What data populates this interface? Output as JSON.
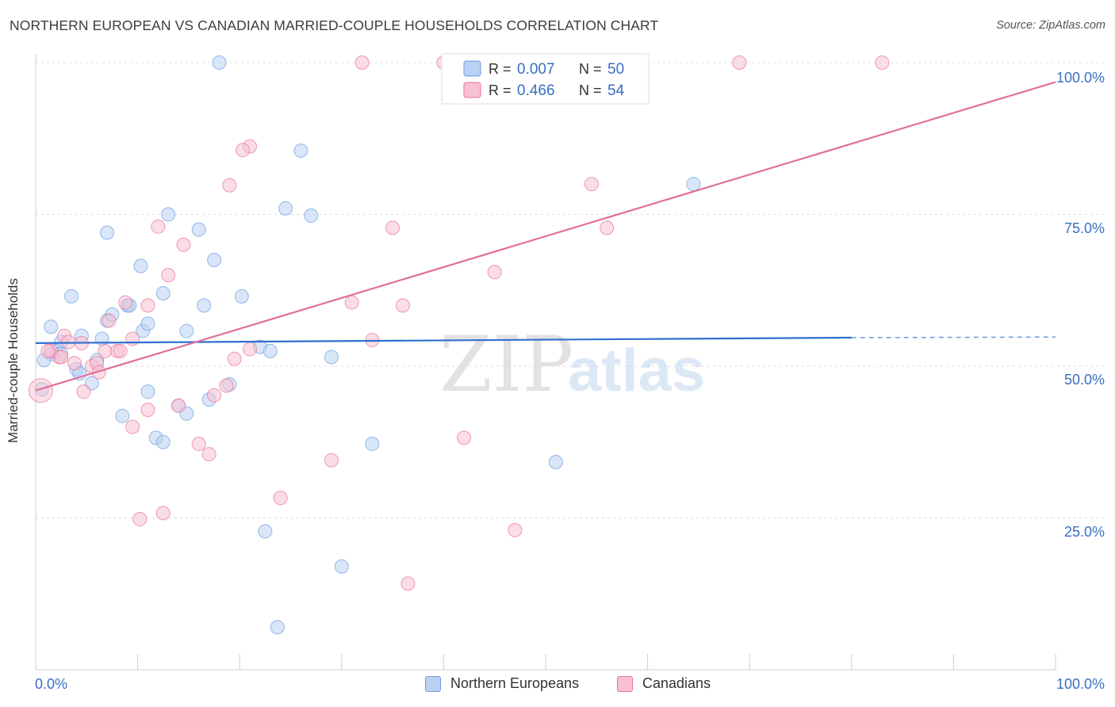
{
  "chart_data": {
    "type": "scatter",
    "title": "NORTHERN EUROPEAN VS CANADIAN MARRIED-COUPLE HOUSEHOLDS CORRELATION CHART",
    "source": "Source: ZipAtlas.com",
    "xlabel": "",
    "ylabel": "Married-couple Households",
    "xlim": [
      0,
      100
    ],
    "ylim": [
      0,
      100
    ],
    "x_tick_labels": [
      "0.0%",
      "100.0%"
    ],
    "y_tick_labels": [
      "25.0%",
      "50.0%",
      "75.0%",
      "100.0%"
    ],
    "y_ticks": [
      25,
      50,
      75,
      100
    ],
    "watermark": {
      "zip": "ZIP",
      "atlas": "atlas"
    },
    "legend_stats": [
      {
        "r_label": "R =",
        "r_value": "0.007",
        "n_label": "N =",
        "n_value": "50"
      },
      {
        "r_label": "R =",
        "r_value": "0.466",
        "n_label": "N =",
        "n_value": "54"
      }
    ],
    "series": [
      {
        "name": "Northern Europeans",
        "color": "#6a9fe0",
        "fill": "#b9d1f2",
        "trend": {
          "x0": 0,
          "y0": 53.8,
          "x1": 80,
          "y1": 54.7,
          "dash_to": 100,
          "dash_y": 54.8
        },
        "points": [
          [
            18,
            100
          ],
          [
            1.5,
            56.5
          ],
          [
            3.5,
            61.5
          ],
          [
            7,
            57.5
          ],
          [
            7.5,
            58.5
          ],
          [
            9,
            60
          ],
          [
            9.2,
            60
          ],
          [
            6.5,
            54.5
          ],
          [
            4.5,
            55
          ],
          [
            2.5,
            54
          ],
          [
            2,
            52.5
          ],
          [
            1.5,
            52
          ],
          [
            0.8,
            51
          ],
          [
            7,
            72
          ],
          [
            10.3,
            66.5
          ],
          [
            13,
            75
          ],
          [
            16,
            72.5
          ],
          [
            17.5,
            67.5
          ],
          [
            12.5,
            62
          ],
          [
            16.5,
            60
          ],
          [
            20.2,
            61.5
          ],
          [
            26,
            85.5
          ],
          [
            24.5,
            76
          ],
          [
            27,
            74.8
          ],
          [
            64.5,
            80
          ],
          [
            6,
            51
          ],
          [
            4,
            49.5
          ],
          [
            4.3,
            48.8
          ],
          [
            5.5,
            47.2
          ],
          [
            10.5,
            55.8
          ],
          [
            11,
            57
          ],
          [
            14.8,
            55.8
          ],
          [
            11,
            45.8
          ],
          [
            8.5,
            41.8
          ],
          [
            14,
            43.5
          ],
          [
            14.8,
            42.2
          ],
          [
            17,
            44.5
          ],
          [
            19,
            47
          ],
          [
            22,
            53.2
          ],
          [
            23,
            52.5
          ],
          [
            29,
            51.5
          ],
          [
            11.8,
            38.2
          ],
          [
            12.5,
            37.5
          ],
          [
            33,
            37.2
          ],
          [
            51,
            34.2
          ],
          [
            22.5,
            22.8
          ],
          [
            30,
            17
          ],
          [
            23.7,
            7
          ],
          [
            0.6,
            46.2
          ],
          [
            2.5,
            52
          ]
        ]
      },
      {
        "name": "Canadians",
        "color": "#e8709c",
        "fill": "#f7c1d2",
        "trend": {
          "x0": 0,
          "y0": 46,
          "x1": 100,
          "y1": 96.8
        },
        "points": [
          [
            32,
            100
          ],
          [
            40,
            100
          ],
          [
            69,
            100
          ],
          [
            83,
            100
          ],
          [
            56.5,
            95
          ],
          [
            21,
            86.2
          ],
          [
            20.3,
            85.6
          ],
          [
            19,
            79.8
          ],
          [
            54.5,
            80
          ],
          [
            12,
            73
          ],
          [
            14.5,
            70
          ],
          [
            35,
            72.8
          ],
          [
            56,
            72.8
          ],
          [
            13,
            65
          ],
          [
            45,
            65.5
          ],
          [
            31,
            60.5
          ],
          [
            36,
            60
          ],
          [
            8.8,
            60.5
          ],
          [
            11,
            60
          ],
          [
            7.2,
            57.5
          ],
          [
            2.8,
            55
          ],
          [
            3.2,
            54
          ],
          [
            4.5,
            53.8
          ],
          [
            6.8,
            52.5
          ],
          [
            8,
            52.5
          ],
          [
            8.3,
            52.5
          ],
          [
            9.5,
            54.5
          ],
          [
            33,
            54.3
          ],
          [
            21,
            52.8
          ],
          [
            19.5,
            51.2
          ],
          [
            2.3,
            51.5
          ],
          [
            1.5,
            52.5
          ],
          [
            3.8,
            50.5
          ],
          [
            5.5,
            50
          ],
          [
            6,
            50.5
          ],
          [
            6.2,
            49
          ],
          [
            4.7,
            45.8
          ],
          [
            18.7,
            46.8
          ],
          [
            17.5,
            45.2
          ],
          [
            14,
            43.5
          ],
          [
            11,
            42.8
          ],
          [
            9.5,
            40
          ],
          [
            16,
            37.2
          ],
          [
            17,
            35.5
          ],
          [
            42,
            38.2
          ],
          [
            29,
            34.5
          ],
          [
            24,
            28.3
          ],
          [
            12.5,
            25.8
          ],
          [
            10.2,
            24.8
          ],
          [
            47,
            23
          ],
          [
            36.5,
            14.2
          ],
          [
            1.2,
            52.5
          ],
          [
            2.5,
            51.5
          ],
          [
            0.5,
            46
          ]
        ]
      }
    ]
  }
}
